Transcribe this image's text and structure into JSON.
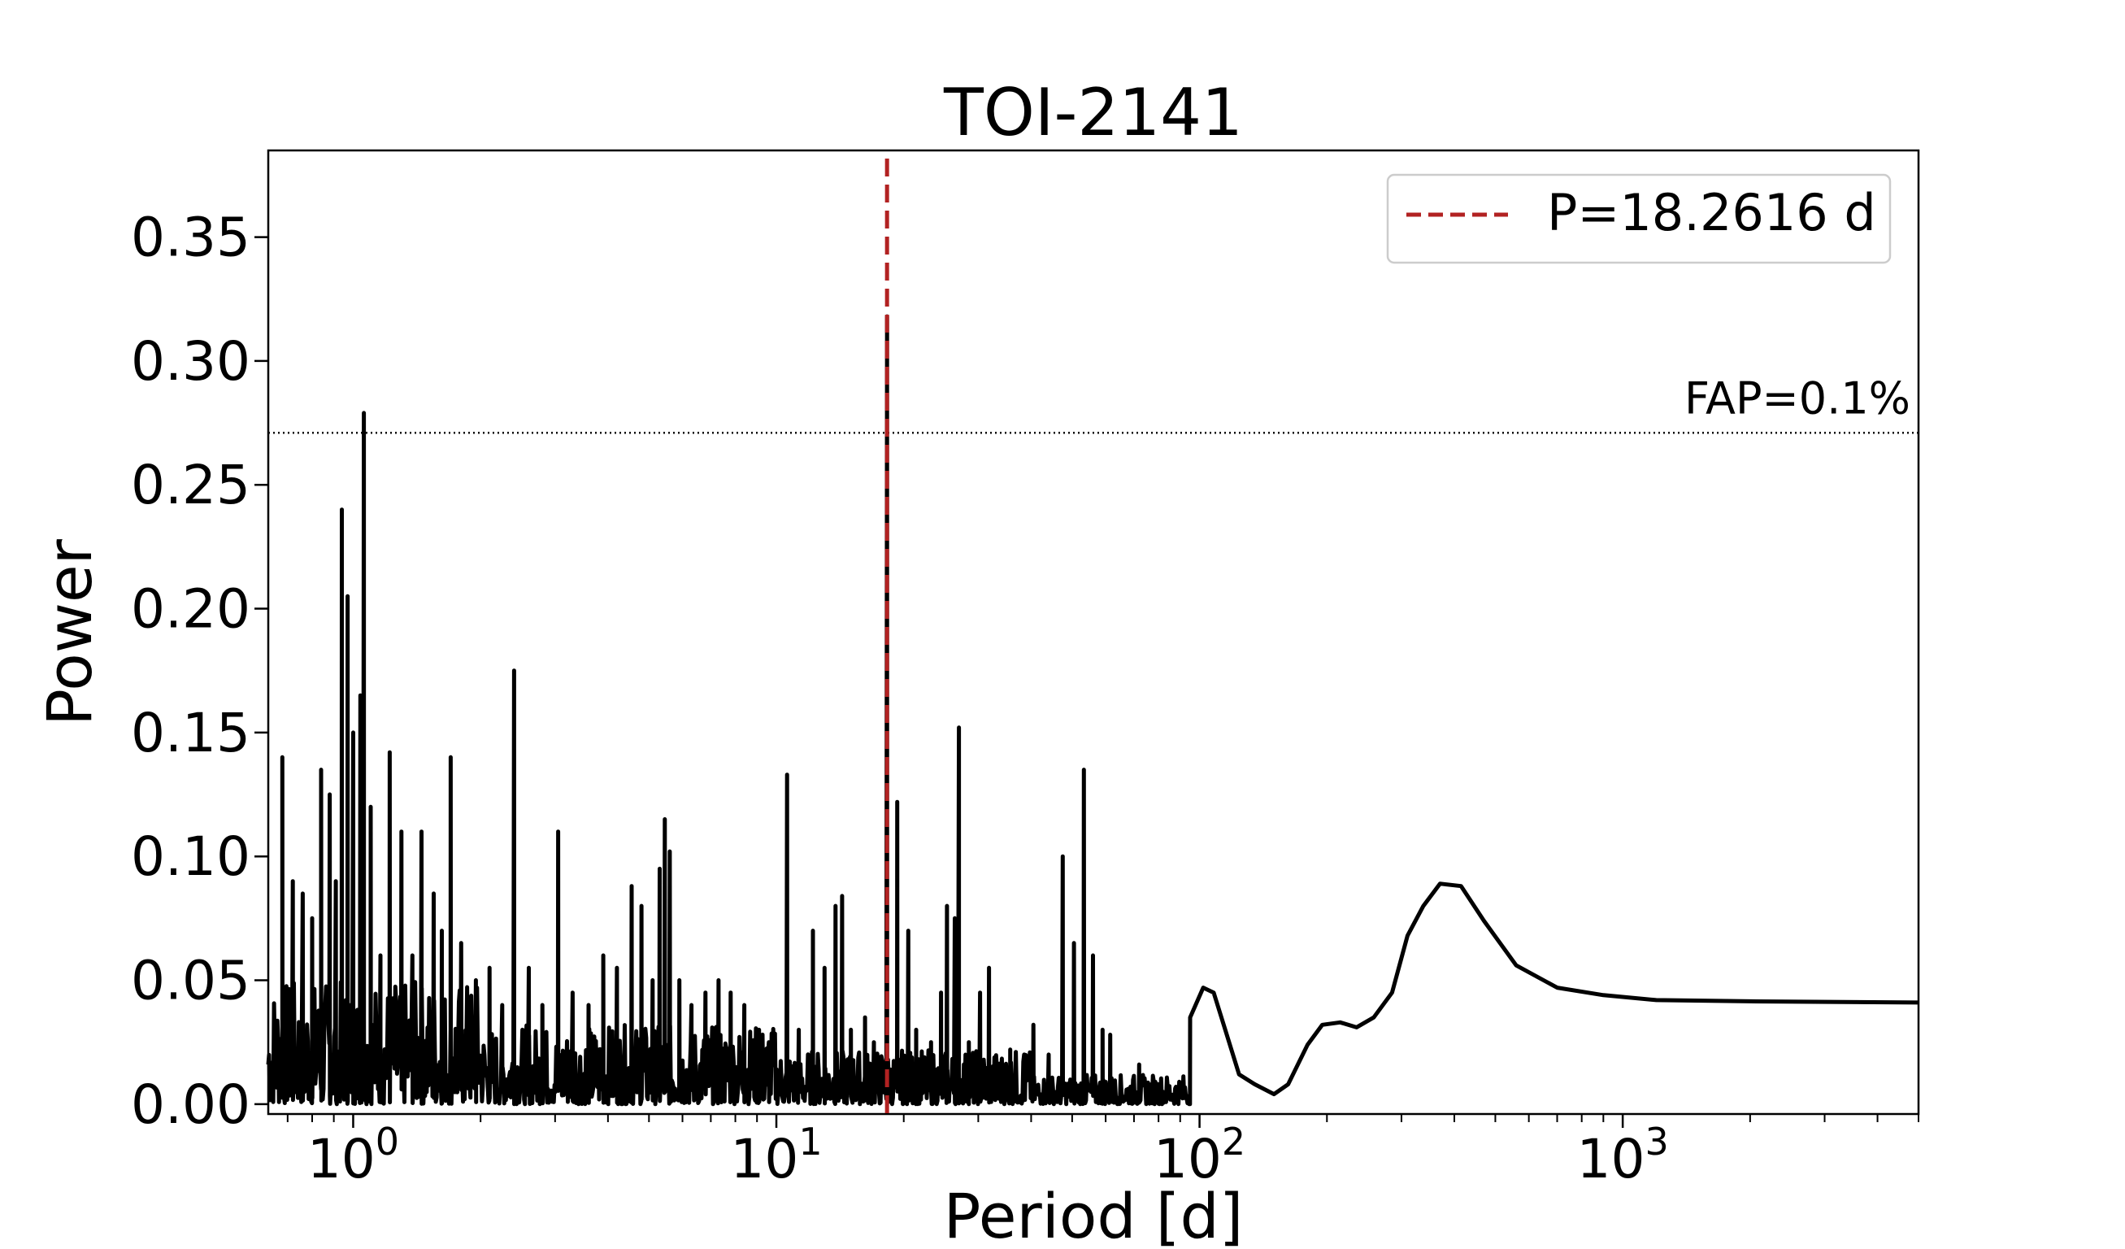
{
  "chart_data": {
    "type": "line",
    "title": "TOI-2141",
    "xlabel": "Period [d]",
    "ylabel": "Power",
    "x_scale": "log",
    "xlim": [
      0.63,
      5000
    ],
    "ylim": [
      -0.004,
      0.385
    ],
    "x_ticks": [
      {
        "value": 1,
        "base": "10",
        "exp": "0"
      },
      {
        "value": 10,
        "base": "10",
        "exp": "1"
      },
      {
        "value": 100,
        "base": "10",
        "exp": "2"
      },
      {
        "value": 1000,
        "base": "10",
        "exp": "3"
      }
    ],
    "y_ticks": [
      {
        "value": 0.0,
        "label": "0.00"
      },
      {
        "value": 0.05,
        "label": "0.05"
      },
      {
        "value": 0.1,
        "label": "0.10"
      },
      {
        "value": 0.15,
        "label": "0.15"
      },
      {
        "value": 0.2,
        "label": "0.20"
      },
      {
        "value": 0.25,
        "label": "0.25"
      },
      {
        "value": 0.3,
        "label": "0.30"
      },
      {
        "value": 0.35,
        "label": "0.35"
      }
    ],
    "grid": false,
    "legend_position": "top-right",
    "series": [
      {
        "name": "",
        "color": "#000000",
        "peaks": [
          [
            0.68,
            0.14
          ],
          [
            0.72,
            0.09
          ],
          [
            0.76,
            0.085
          ],
          [
            0.8,
            0.075
          ],
          [
            0.84,
            0.135
          ],
          [
            0.88,
            0.125
          ],
          [
            0.91,
            0.09
          ],
          [
            0.94,
            0.24
          ],
          [
            0.97,
            0.205
          ],
          [
            1.0,
            0.15
          ],
          [
            1.04,
            0.165
          ],
          [
            1.06,
            0.279
          ],
          [
            1.1,
            0.12
          ],
          [
            1.16,
            0.06
          ],
          [
            1.22,
            0.142
          ],
          [
            1.3,
            0.11
          ],
          [
            1.38,
            0.06
          ],
          [
            1.45,
            0.11
          ],
          [
            1.55,
            0.085
          ],
          [
            1.62,
            0.07
          ],
          [
            1.7,
            0.14
          ],
          [
            1.8,
            0.065
          ],
          [
            1.95,
            0.05
          ],
          [
            2.1,
            0.055
          ],
          [
            2.25,
            0.04
          ],
          [
            2.4,
            0.175
          ],
          [
            2.6,
            0.055
          ],
          [
            2.8,
            0.04
          ],
          [
            3.05,
            0.11
          ],
          [
            3.3,
            0.045
          ],
          [
            3.6,
            0.04
          ],
          [
            3.9,
            0.06
          ],
          [
            4.2,
            0.055
          ],
          [
            4.55,
            0.088
          ],
          [
            4.8,
            0.08
          ],
          [
            5.1,
            0.05
          ],
          [
            5.3,
            0.095
          ],
          [
            5.45,
            0.115
          ],
          [
            5.6,
            0.102
          ],
          [
            5.9,
            0.05
          ],
          [
            6.3,
            0.04
          ],
          [
            6.8,
            0.045
          ],
          [
            7.3,
            0.05
          ],
          [
            7.8,
            0.045
          ],
          [
            8.4,
            0.04
          ],
          [
            9.1,
            0.03
          ],
          [
            9.6,
            0.025
          ],
          [
            10.6,
            0.133
          ],
          [
            11.3,
            0.03
          ],
          [
            12.2,
            0.07
          ],
          [
            13.0,
            0.055
          ],
          [
            13.8,
            0.08
          ],
          [
            14.3,
            0.084
          ],
          [
            15.0,
            0.03
          ],
          [
            16.2,
            0.035
          ],
          [
            17.0,
            0.025
          ],
          [
            18.2616,
            0.318
          ],
          [
            19.3,
            0.122
          ],
          [
            20.5,
            0.07
          ],
          [
            21.4,
            0.03
          ],
          [
            23.2,
            0.025
          ],
          [
            24.5,
            0.045
          ],
          [
            25.3,
            0.08
          ],
          [
            26.4,
            0.075
          ],
          [
            27.0,
            0.152
          ],
          [
            28.5,
            0.025
          ],
          [
            30.3,
            0.045
          ],
          [
            31.8,
            0.055
          ],
          [
            33.5,
            0.015
          ],
          [
            35.7,
            0.022
          ],
          [
            38.5,
            0.02
          ],
          [
            40.5,
            0.032
          ],
          [
            44.0,
            0.02
          ],
          [
            47.5,
            0.1
          ],
          [
            50.5,
            0.065
          ],
          [
            53.3,
            0.135
          ],
          [
            56.0,
            0.06
          ],
          [
            59.0,
            0.03
          ],
          [
            61.5,
            0.028
          ],
          [
            72.0,
            0.016
          ],
          [
            102.0,
            0.047
          ],
          [
            195.0,
            0.033
          ],
          [
            215.0,
            0.032
          ],
          [
            335.0,
            0.09
          ]
        ],
        "tail": [
          [
            95,
            0.035
          ],
          [
            102,
            0.047
          ],
          [
            108,
            0.045
          ],
          [
            115,
            0.03
          ],
          [
            124,
            0.012
          ],
          [
            135,
            0.008
          ],
          [
            150,
            0.004
          ],
          [
            162,
            0.008
          ],
          [
            180,
            0.024
          ],
          [
            195,
            0.032
          ],
          [
            215,
            0.033
          ],
          [
            235,
            0.031
          ],
          [
            258,
            0.035
          ],
          [
            285,
            0.045
          ],
          [
            310,
            0.068
          ],
          [
            338,
            0.08
          ],
          [
            370,
            0.089
          ],
          [
            415,
            0.088
          ],
          [
            470,
            0.074
          ],
          [
            560,
            0.056
          ],
          [
            700,
            0.047
          ],
          [
            900,
            0.044
          ],
          [
            1200,
            0.042
          ],
          [
            2000,
            0.0415
          ],
          [
            5000,
            0.041
          ]
        ]
      }
    ],
    "fap": {
      "label": "FAP=0.1%",
      "value": 0.271
    },
    "marker": {
      "label": "P=18.2616 d",
      "period": 18.2616,
      "color": "#b22222"
    }
  }
}
